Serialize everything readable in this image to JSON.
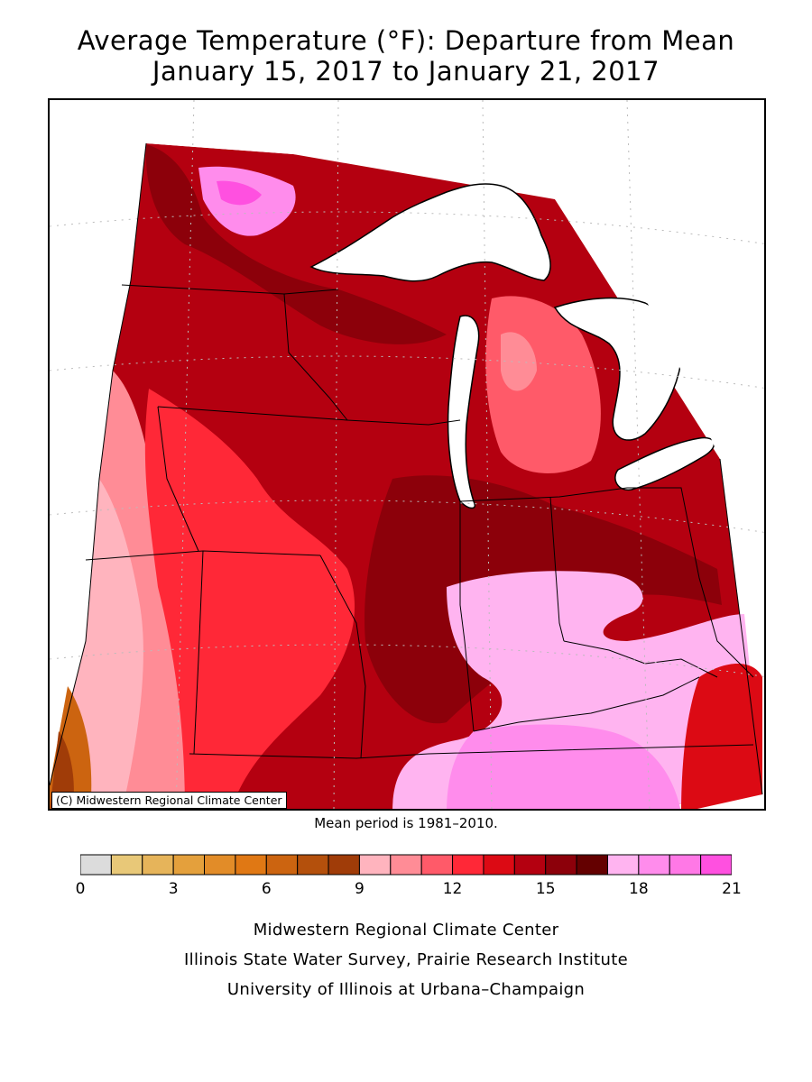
{
  "title": {
    "line1": "Average Temperature (°F): Departure from Mean",
    "line2": "January 15, 2017 to January 21, 2017"
  },
  "map": {
    "copyright": "(C) Midwestern Regional Climate Center",
    "mean_period_note": "Mean period is 1981–2010.",
    "land_outside_color": "#ffffff",
    "lake_color": "#ffffff"
  },
  "legend": {
    "tick_labels": [
      "0",
      "3",
      "6",
      "9",
      "12",
      "15",
      "18",
      "21"
    ],
    "bins": [
      {
        "color": "#dcdcdc"
      },
      {
        "color": "#e8c878"
      },
      {
        "color": "#e6b45a"
      },
      {
        "color": "#e4a03c"
      },
      {
        "color": "#e28c28"
      },
      {
        "color": "#e07814"
      },
      {
        "color": "#cc6410"
      },
      {
        "color": "#b4500c"
      },
      {
        "color": "#a03c08"
      },
      {
        "color": "#ffb4be"
      },
      {
        "color": "#ff8c96"
      },
      {
        "color": "#ff5a69"
      },
      {
        "color": "#ff2837"
      },
      {
        "color": "#dc0a14"
      },
      {
        "color": "#b40010"
      },
      {
        "color": "#8c000a"
      },
      {
        "color": "#640000"
      },
      {
        "color": "#ffb4f0"
      },
      {
        "color": "#ff8cec"
      },
      {
        "color": "#ff78e6"
      },
      {
        "color": "#ff50e0"
      }
    ]
  },
  "footer": {
    "line1": "Midwestern Regional Climate Center",
    "line2": "Illinois State Water Survey, Prairie Research Institute",
    "line3": "University of Illinois at Urbana–Champaign"
  }
}
